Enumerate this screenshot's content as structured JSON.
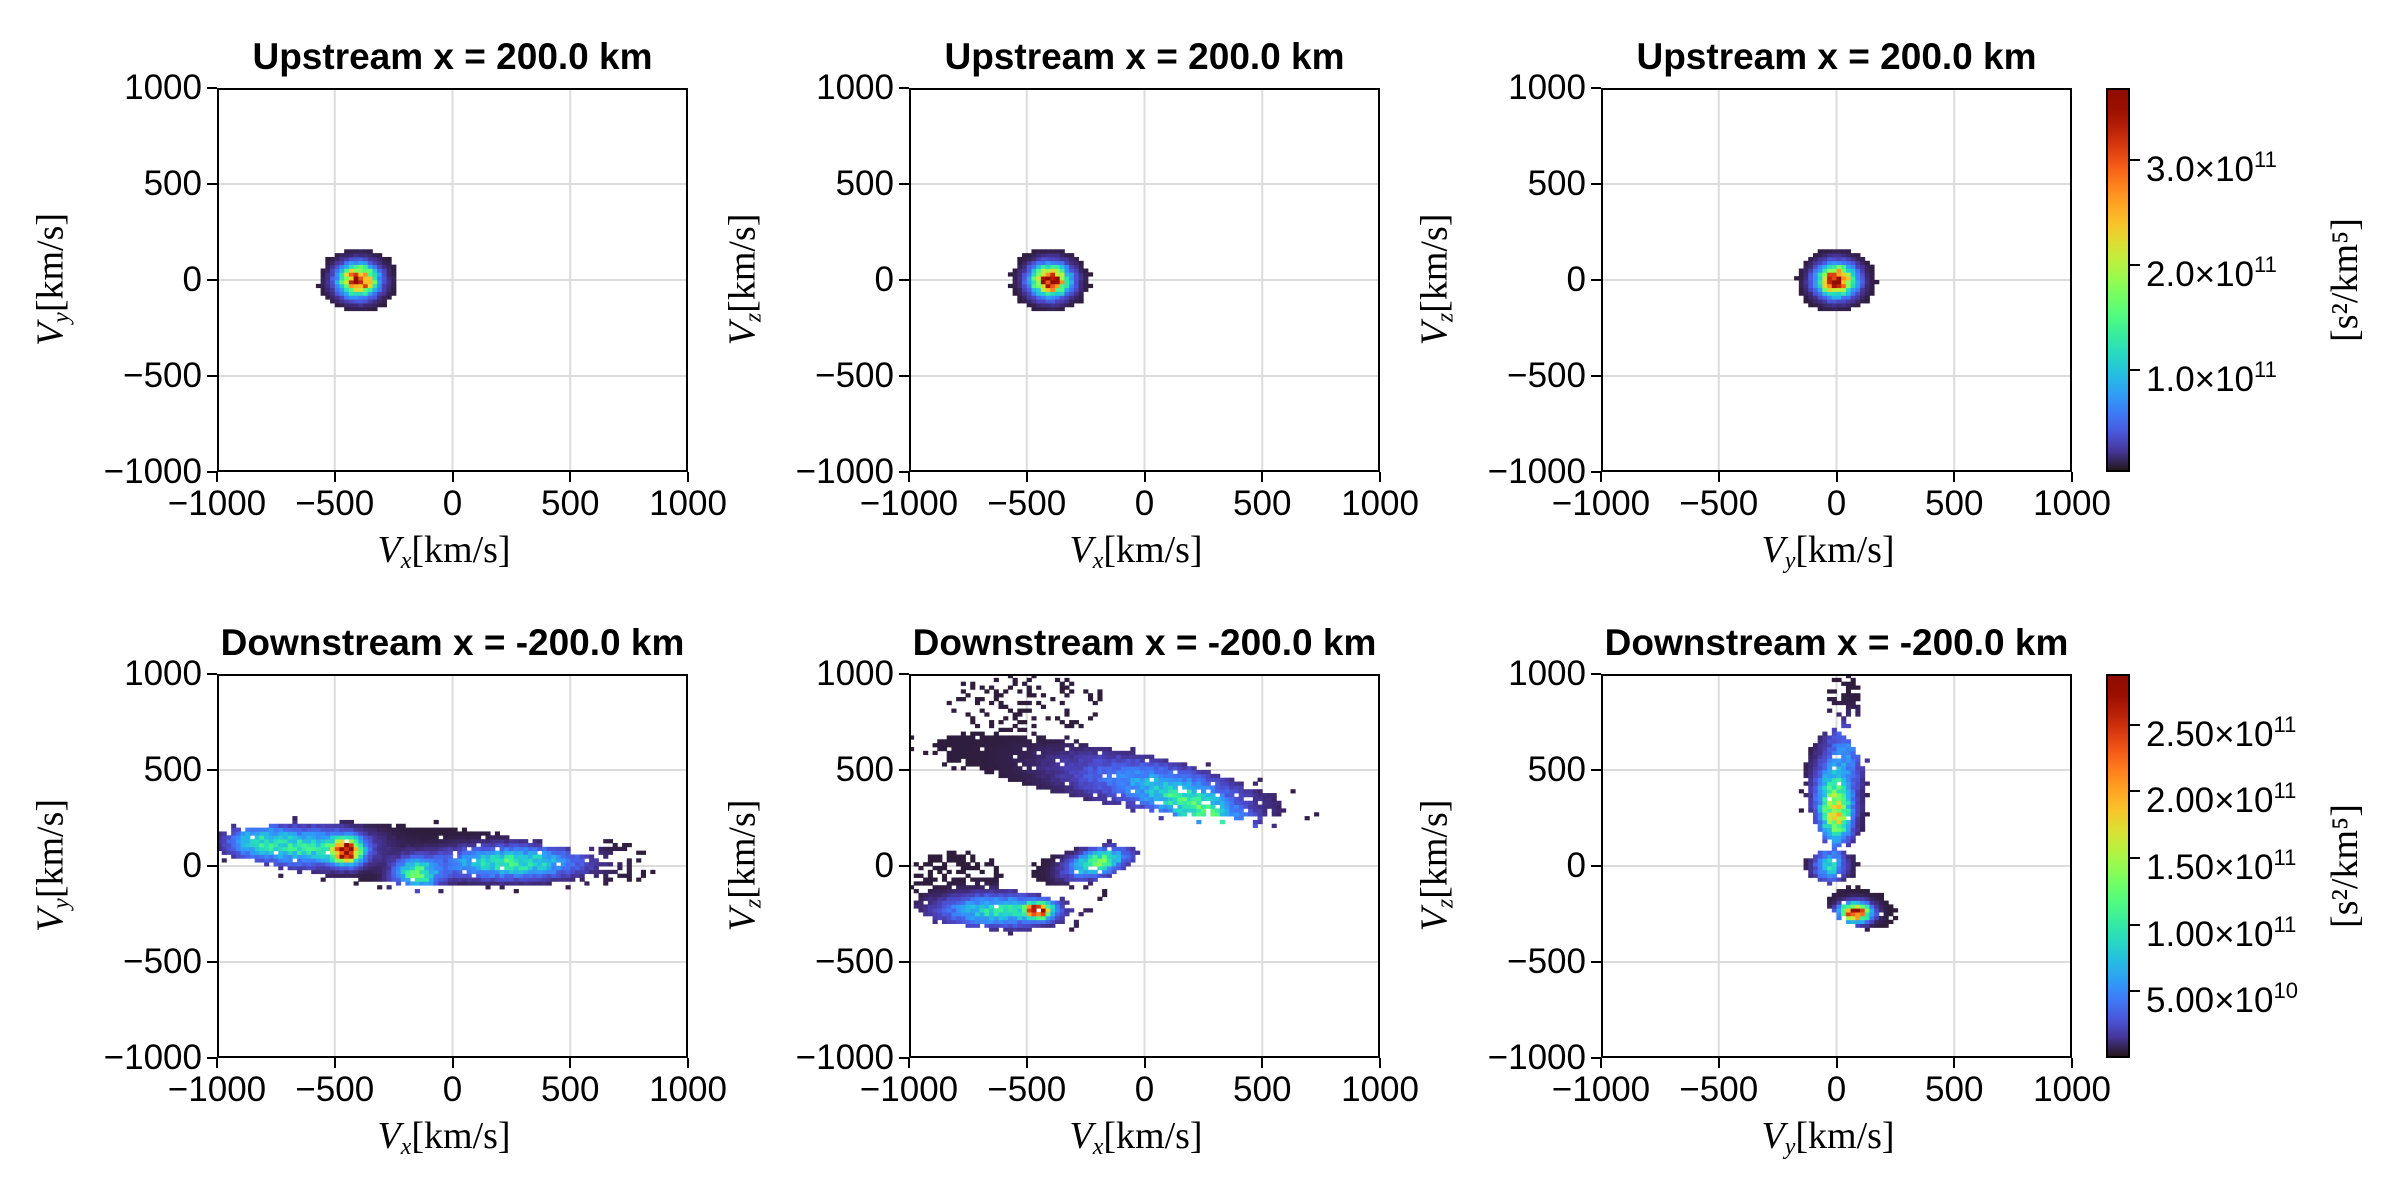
{
  "chart_data": [
    {
      "type": "heatmap",
      "title": "Upstream x = 200.0 km",
      "xlabel": {
        "sym": "V",
        "sub": "x",
        "unit": "[km/s]"
      },
      "ylabel": {
        "sym": "V",
        "sub": "y",
        "unit": "[km/s]"
      },
      "xlim": [
        -1000,
        1000
      ],
      "ylim": [
        -1000,
        1000
      ],
      "xticks": [
        "−1000",
        "−500",
        "0",
        "500",
        "1000"
      ],
      "yticks": [
        "−1000",
        "−500",
        "0",
        "500",
        "1000"
      ],
      "tick_values": [
        -1000,
        -500,
        0,
        500,
        1000
      ],
      "grid": true,
      "colorbar": 0,
      "bins": 100,
      "regions": [
        {
          "center": [
            -400,
            0
          ],
          "semi": [
            170,
            165
          ],
          "angle": 0,
          "fill": 1,
          "halo": 0
        }
      ],
      "peaks": [
        {
          "center": [
            -400,
            0
          ],
          "sigma": [
            50,
            50
          ],
          "angle": 0,
          "value": 3.6
        }
      ]
    },
    {
      "type": "heatmap",
      "title": "Upstream x = 200.0 km",
      "xlabel": {
        "sym": "V",
        "sub": "x",
        "unit": "[km/s]"
      },
      "ylabel": {
        "sym": "V",
        "sub": "z",
        "unit": "[km/s]"
      },
      "xlim": [
        -1000,
        1000
      ],
      "ylim": [
        -1000,
        1000
      ],
      "xticks": [
        "−1000",
        "−500",
        "0",
        "500",
        "1000"
      ],
      "yticks": [
        "−1000",
        "−500",
        "0",
        "500",
        "1000"
      ],
      "tick_values": [
        -1000,
        -500,
        0,
        500,
        1000
      ],
      "grid": true,
      "colorbar": 0,
      "bins": 100,
      "regions": [
        {
          "center": [
            -400,
            0
          ],
          "semi": [
            170,
            165
          ],
          "angle": 0,
          "fill": 1,
          "halo": 0
        }
      ],
      "peaks": [
        {
          "center": [
            -400,
            0
          ],
          "sigma": [
            50,
            50
          ],
          "angle": 0,
          "value": 3.6
        }
      ]
    },
    {
      "type": "heatmap",
      "title": "Upstream x = 200.0 km",
      "xlabel": {
        "sym": "V",
        "sub": "y",
        "unit": "[km/s]"
      },
      "ylabel": {
        "sym": "V",
        "sub": "z",
        "unit": "[km/s]"
      },
      "xlim": [
        -1000,
        1000
      ],
      "ylim": [
        -1000,
        1000
      ],
      "xticks": [
        "−1000",
        "−500",
        "0",
        "500",
        "1000"
      ],
      "yticks": [
        "−1000",
        "−500",
        "0",
        "500",
        "1000"
      ],
      "tick_values": [
        -1000,
        -500,
        0,
        500,
        1000
      ],
      "grid": true,
      "colorbar": 0,
      "bins": 100,
      "regions": [
        {
          "center": [
            0,
            0
          ],
          "semi": [
            170,
            165
          ],
          "angle": 0,
          "fill": 1,
          "halo": 0
        }
      ],
      "peaks": [
        {
          "center": [
            0,
            0
          ],
          "sigma": [
            50,
            50
          ],
          "angle": 0,
          "value": 3.6
        }
      ]
    },
    {
      "type": "heatmap",
      "title": "Downstream x = -200.0 km",
      "xlabel": {
        "sym": "V",
        "sub": "x",
        "unit": "[km/s]"
      },
      "ylabel": {
        "sym": "V",
        "sub": "y",
        "unit": "[km/s]"
      },
      "xlim": [
        -1000,
        1000
      ],
      "ylim": [
        -1000,
        1000
      ],
      "xticks": [
        "−1000",
        "−500",
        "0",
        "500",
        "1000"
      ],
      "yticks": [
        "−1000",
        "−500",
        "0",
        "500",
        "1000"
      ],
      "tick_values": [
        -1000,
        -500,
        0,
        500,
        1000
      ],
      "grid": true,
      "colorbar": 1,
      "bins": 100,
      "regions": [
        {
          "center": [
            -200,
            60
          ],
          "semi": [
            820,
            150
          ],
          "angle": -5,
          "fill": 0.98,
          "halo": 0.1
        },
        {
          "center": [
            700,
            20
          ],
          "semi": [
            150,
            100
          ],
          "angle": 0,
          "fill": 0.4,
          "halo": 0.1
        }
      ],
      "peaks": [
        {
          "center": [
            -450,
            80
          ],
          "sigma": [
            40,
            40
          ],
          "angle": 0,
          "value": 2.8
        },
        {
          "center": [
            -620,
            100
          ],
          "sigma": [
            150,
            60
          ],
          "angle": 0,
          "value": 0.9
        },
        {
          "center": [
            -830,
            140
          ],
          "sigma": [
            80,
            50
          ],
          "angle": 0,
          "value": 0.6
        },
        {
          "center": [
            -150,
            -40
          ],
          "sigma": [
            60,
            50
          ],
          "angle": 0,
          "value": 1.1
        },
        {
          "center": [
            250,
            20
          ],
          "sigma": [
            180,
            50
          ],
          "angle": 0,
          "value": 1.0
        }
      ]
    },
    {
      "type": "heatmap",
      "title": "Downstream x = -200.0 km",
      "xlabel": {
        "sym": "V",
        "sub": "x",
        "unit": "[km/s]"
      },
      "ylabel": {
        "sym": "V",
        "sub": "z",
        "unit": "[km/s]"
      },
      "xlim": [
        -1000,
        1000
      ],
      "ylim": [
        -1000,
        1000
      ],
      "xticks": [
        "−1000",
        "−500",
        "0",
        "500",
        "1000"
      ],
      "yticks": [
        "−1000",
        "−500",
        "0",
        "500",
        "1000"
      ],
      "tick_values": [
        -1000,
        -500,
        0,
        500,
        1000
      ],
      "grid": true,
      "colorbar": 1,
      "bins": 100,
      "regions": [
        {
          "center": [
            -150,
            470
          ],
          "semi": [
            750,
            140
          ],
          "angle": -13,
          "fill": 0.95,
          "halo": 0.15
        },
        {
          "center": [
            -500,
            850
          ],
          "semi": [
            350,
            150
          ],
          "angle": 0,
          "fill": 0.22,
          "halo": 0
        },
        {
          "center": [
            -250,
            10
          ],
          "semi": [
            230,
            90
          ],
          "angle": 15,
          "fill": 0.95,
          "halo": 0.1
        },
        {
          "center": [
            -650,
            -220
          ],
          "semi": [
            330,
            110
          ],
          "angle": -5,
          "fill": 0.97,
          "halo": 0.1
        },
        {
          "center": [
            -800,
            -40
          ],
          "semi": [
            200,
            110
          ],
          "angle": 0,
          "fill": 0.45,
          "halo": 0
        },
        {
          "center": [
            -250,
            -200
          ],
          "semi": [
            150,
            120
          ],
          "angle": 0,
          "fill": 0.08,
          "halo": 0
        }
      ],
      "peaks": [
        {
          "center": [
            -450,
            -230
          ],
          "sigma": [
            35,
            25
          ],
          "angle": 0,
          "value": 2.8
        },
        {
          "center": [
            -620,
            -230
          ],
          "sigma": [
            150,
            50
          ],
          "angle": 0,
          "value": 0.9
        },
        {
          "center": [
            -200,
            20
          ],
          "sigma": [
            80,
            40
          ],
          "angle": 20,
          "value": 1.2
        },
        {
          "center": [
            250,
            280
          ],
          "sigma": [
            150,
            60
          ],
          "angle": -30,
          "value": 0.9
        },
        {
          "center": [
            50,
            420
          ],
          "sigma": [
            250,
            80
          ],
          "angle": -13,
          "value": 0.5
        }
      ]
    },
    {
      "type": "heatmap",
      "title": "Downstream x = -200.0 km",
      "xlabel": {
        "sym": "V",
        "sub": "y",
        "unit": "[km/s]"
      },
      "ylabel": {
        "sym": "V",
        "sub": "z",
        "unit": "[km/s]"
      },
      "xlim": [
        -1000,
        1000
      ],
      "ylim": [
        -1000,
        1000
      ],
      "xticks": [
        "−1000",
        "−500",
        "0",
        "500",
        "1000"
      ],
      "yticks": [
        "−1000",
        "−500",
        "0",
        "500",
        "1000"
      ],
      "tick_values": [
        -1000,
        -500,
        0,
        500,
        1000
      ],
      "grid": true,
      "colorbar": 1,
      "bins": 100,
      "regions": [
        {
          "center": [
            0,
            400
          ],
          "semi": [
            130,
            300
          ],
          "angle": 5,
          "fill": 0.98,
          "halo": 0.05
        },
        {
          "center": [
            30,
            860
          ],
          "semi": [
            70,
            150
          ],
          "angle": 0,
          "fill": 0.5,
          "halo": 0
        },
        {
          "center": [
            -20,
            0
          ],
          "semi": [
            110,
            90
          ],
          "angle": 0,
          "fill": 0.98,
          "halo": 0.05
        },
        {
          "center": [
            110,
            -220
          ],
          "semi": [
            150,
            100
          ],
          "angle": -25,
          "fill": 0.98,
          "halo": 0.05
        }
      ],
      "peaks": [
        {
          "center": [
            80,
            -240
          ],
          "sigma": [
            40,
            30
          ],
          "angle": 0,
          "value": 2.8
        },
        {
          "center": [
            0,
            250
          ],
          "sigma": [
            40,
            80
          ],
          "angle": 0,
          "value": 1.3
        },
        {
          "center": [
            -10,
            380
          ],
          "sigma": [
            50,
            100
          ],
          "angle": 0,
          "value": 0.9
        },
        {
          "center": [
            -30,
            0
          ],
          "sigma": [
            40,
            50
          ],
          "angle": 0,
          "value": 0.8
        },
        {
          "center": [
            40,
            600
          ],
          "sigma": [
            60,
            100
          ],
          "angle": 0,
          "value": 0.4
        }
      ]
    }
  ],
  "colorbars": [
    {
      "label": "[s²/km⁵]",
      "range": [
        0.03,
        3.68
      ],
      "scale": 100000000000.0,
      "colormap": "turbo",
      "ticks": [
        {
          "value": 1.0,
          "mant": "1.0×10",
          "exp": "11"
        },
        {
          "value": 2.0,
          "mant": "2.0×10",
          "exp": "11"
        },
        {
          "value": 3.0,
          "mant": "3.0×10",
          "exp": "11"
        }
      ]
    },
    {
      "label": "[s²/km⁵]",
      "range": [
        0.0,
        2.88
      ],
      "scale": 100000000000.0,
      "colormap": "turbo",
      "ticks": [
        {
          "value": 0.5,
          "mant": "5.00×10",
          "exp": "10"
        },
        {
          "value": 1.0,
          "mant": "1.00×10",
          "exp": "11"
        },
        {
          "value": 1.5,
          "mant": "1.50×10",
          "exp": "11"
        },
        {
          "value": 2.0,
          "mant": "2.00×10",
          "exp": "11"
        },
        {
          "value": 2.5,
          "mant": "2.50×10",
          "exp": "11"
        }
      ]
    }
  ]
}
